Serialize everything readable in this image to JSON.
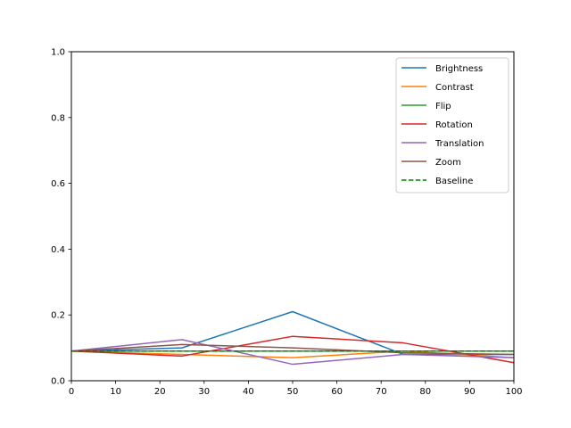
{
  "chart_data": {
    "type": "line",
    "title": "",
    "xlabel": "",
    "ylabel": "",
    "xlim": [
      0,
      100
    ],
    "ylim": [
      0,
      1.0
    ],
    "x_ticks": [
      0,
      10,
      20,
      30,
      40,
      50,
      60,
      70,
      80,
      90,
      100
    ],
    "y_ticks": [
      0.0,
      0.2,
      0.4,
      0.6,
      0.8,
      1.0
    ],
    "x_tick_labels": [
      "0",
      "10",
      "20",
      "30",
      "40",
      "50",
      "60",
      "70",
      "80",
      "90",
      "100"
    ],
    "y_tick_labels": [
      "0.0",
      "0.2",
      "0.4",
      "0.6",
      "0.8",
      "1.0"
    ],
    "grid": false,
    "legend_position": "top-right",
    "x": [
      0,
      25,
      50,
      75,
      100
    ],
    "series": [
      {
        "name": "Brightness",
        "color": "#1f77b4",
        "style": "solid",
        "values": [
          0.09,
          0.1,
          0.21,
          0.08,
          0.08
        ]
      },
      {
        "name": "Contrast",
        "color": "#ff7f0e",
        "style": "solid",
        "values": [
          0.09,
          0.08,
          0.07,
          0.09,
          0.07
        ]
      },
      {
        "name": "Flip",
        "color": "#2ca02c",
        "style": "solid",
        "values": [
          0.09,
          0.09,
          0.09,
          0.09,
          0.09
        ]
      },
      {
        "name": "Rotation",
        "color": "#d62728",
        "style": "solid",
        "values": [
          0.09,
          0.075,
          0.135,
          0.115,
          0.055
        ]
      },
      {
        "name": "Translation",
        "color": "#9467bd",
        "style": "solid",
        "values": [
          0.09,
          0.125,
          0.05,
          0.08,
          0.07
        ]
      },
      {
        "name": "Zoom",
        "color": "#8c564b",
        "style": "solid",
        "values": [
          0.09,
          0.11,
          0.1,
          0.085,
          0.08
        ]
      },
      {
        "name": "Baseline",
        "color": "#008000",
        "style": "dashed",
        "values": [
          0.09,
          0.09,
          0.09,
          0.09,
          0.09
        ]
      }
    ]
  }
}
